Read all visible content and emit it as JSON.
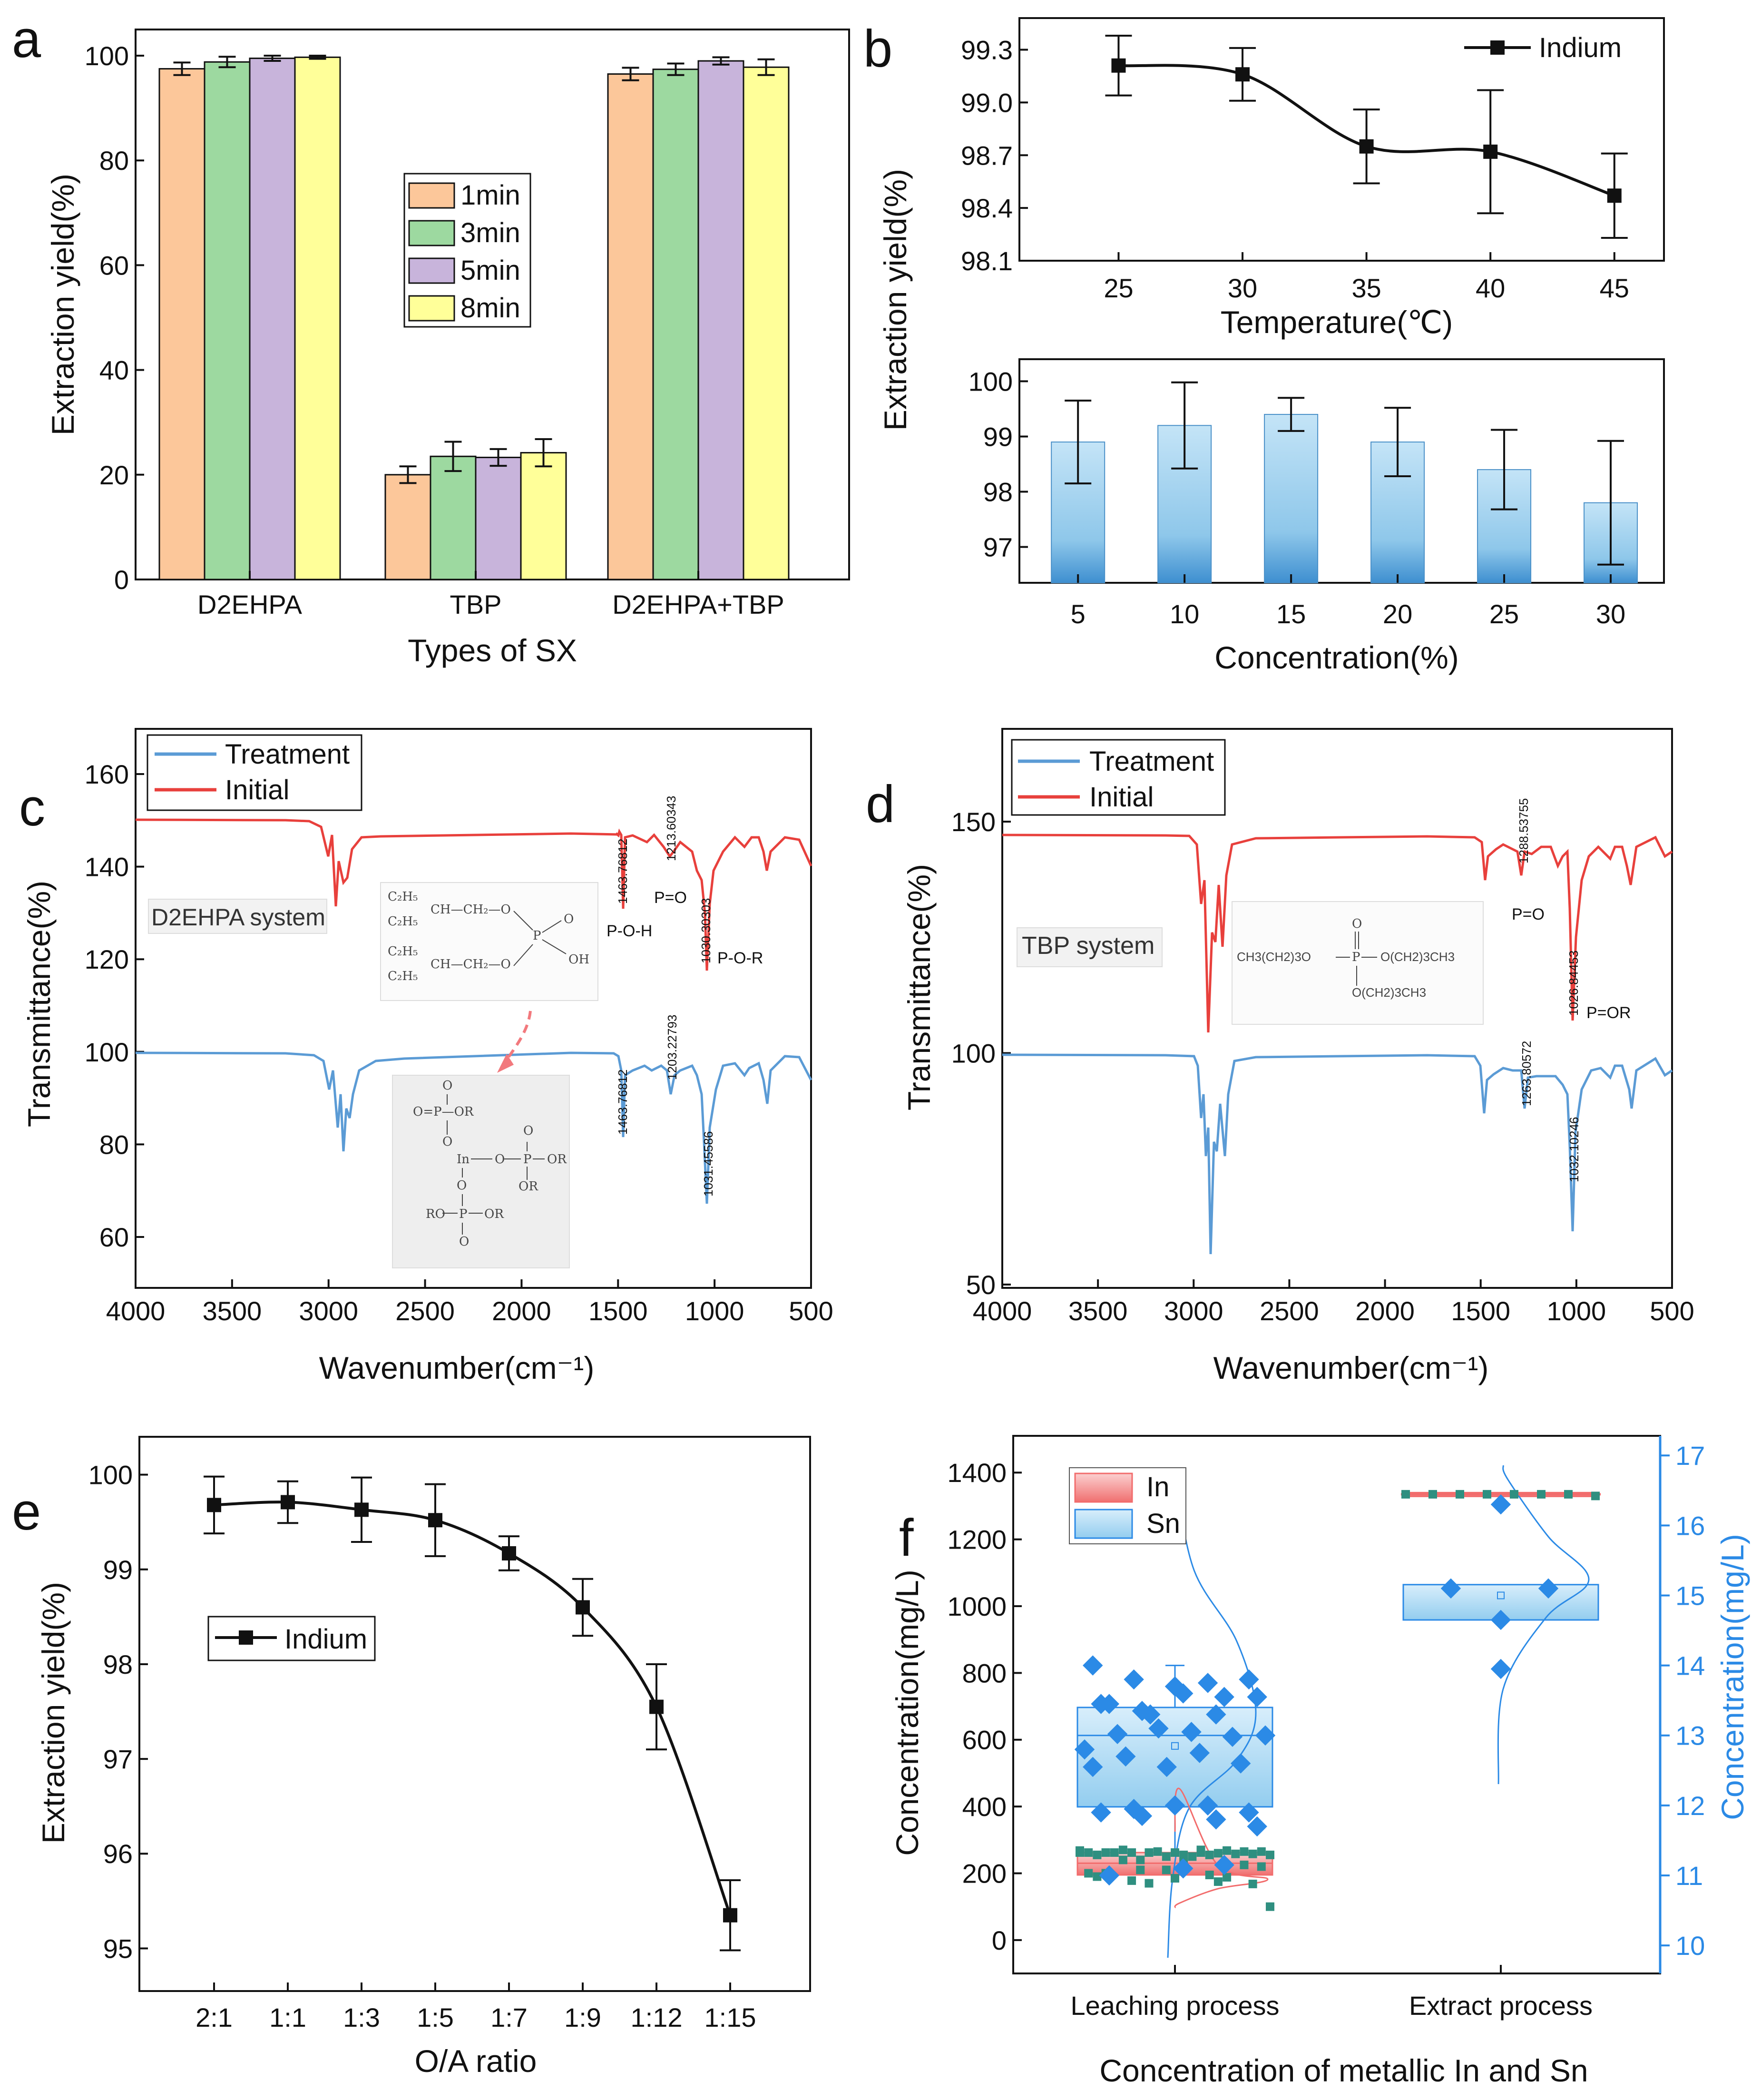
{
  "colors": {
    "peach": "#fcc79a",
    "green": "#9dd9a0",
    "purple": "#c8b4db",
    "yellow": "#ffff99",
    "blue_ftir": "#5b9bd5",
    "red_ftir": "#e8403c",
    "bar_blue": "#8ec7ea",
    "in_red": "#f26c6c",
    "sn_blue": "#2b8ae6",
    "teal": "#2f8f80"
  },
  "chart_data": [
    {
      "id": "a",
      "type": "bar",
      "panel_label": "a",
      "categories": [
        "D2EHPA",
        "TBP",
        "D2EHPA+TBP"
      ],
      "series": [
        {
          "name": "1min",
          "values": [
            97.5,
            20.0,
            96.5
          ],
          "errors": [
            1.2,
            1.6,
            1.2
          ]
        },
        {
          "name": "3min",
          "values": [
            98.8,
            23.5,
            97.4
          ],
          "errors": [
            1.0,
            2.8,
            1.1
          ]
        },
        {
          "name": "5min",
          "values": [
            99.5,
            23.3,
            99.0
          ],
          "errors": [
            0.5,
            1.6,
            0.7
          ]
        },
        {
          "name": "8min",
          "values": [
            99.7,
            24.2,
            97.8
          ],
          "errors": [
            0.3,
            2.6,
            1.5
          ]
        }
      ],
      "xlabel": "Types of SX",
      "ylabel": "Extraction yield(%)",
      "ylim": [
        0,
        105
      ],
      "yticks": [
        0,
        20,
        40,
        60,
        80,
        100
      ]
    },
    {
      "id": "b1",
      "type": "line",
      "panel_label": "b",
      "x": [
        25,
        30,
        35,
        40,
        45
      ],
      "values": [
        99.21,
        99.16,
        98.75,
        98.72,
        98.47
      ],
      "errors": [
        0.17,
        0.15,
        0.21,
        0.35,
        0.24
      ],
      "series_name": "Indium",
      "xlabel": "Temperature(℃)",
      "xlim": [
        21,
        47
      ],
      "ylim": [
        98.1,
        99.48
      ],
      "xticks": [
        25,
        30,
        35,
        40,
        45
      ],
      "yticks": [
        "98.1",
        "98.4",
        "98.7",
        "99.0",
        "99.3"
      ]
    },
    {
      "id": "b2",
      "type": "bar",
      "categories": [
        "5",
        "10",
        "15",
        "20",
        "25",
        "30"
      ],
      "values": [
        98.9,
        99.2,
        99.4,
        98.9,
        98.4,
        97.8
      ],
      "errors": [
        0.75,
        0.78,
        0.3,
        0.62,
        0.72,
        1.12
      ],
      "xlabel": "Concentration(%)",
      "ylim": [
        96.35,
        100.4
      ],
      "yticks": [
        97,
        98,
        99,
        100
      ],
      "shared_ylabel": "Extraction yield(%)"
    },
    {
      "id": "c",
      "type": "line",
      "panel_label": "c",
      "series": [
        {
          "name": "Treatment"
        },
        {
          "name": "Initial"
        }
      ],
      "xlabel": "Wavenumber(cm⁻¹)",
      "ylabel": "Transmittance(%)",
      "xlim": [
        4000,
        500
      ],
      "ylim": [
        50,
        170
      ],
      "xticks": [
        4000,
        3500,
        3000,
        2500,
        2000,
        1500,
        1000,
        500
      ],
      "yticks": [
        60,
        80,
        100,
        120,
        140,
        160
      ],
      "system_label": "D2EHPA system",
      "peak_labels_initial": [
        "1463.76812",
        "1213.60343",
        "1030.30303"
      ],
      "peak_labels_treatment": [
        "1463.76812",
        "1203.22793",
        "1031.45586"
      ],
      "bond_labels": [
        "P=O",
        "P-O-H",
        "P-O-R"
      ],
      "structure_top": {
        "r1": "C₂H₅",
        "r2": "C₂H₅",
        "r3": "C₂H₅",
        "r4": "C₂H₅",
        "chain": "CH—CH₂—O",
        "o": "O",
        "p": "P",
        "oh": "OH"
      },
      "structure_bottom": {
        "or": "OR",
        "o": "O",
        "p": "P",
        "in": "In",
        "ro": "RO",
        "o_or": "O=P—OR"
      }
    },
    {
      "id": "d",
      "type": "line",
      "panel_label": "d",
      "series": [
        {
          "name": "Treatment"
        },
        {
          "name": "Initial"
        }
      ],
      "xlabel": "Wavenumber(cm⁻¹)",
      "ylabel": "Transmittance(%)",
      "xlim": [
        4000,
        500
      ],
      "ylim": [
        50,
        170
      ],
      "xticks": [
        4000,
        3500,
        3000,
        2500,
        2000,
        1500,
        1000,
        500
      ],
      "yticks": [
        50,
        100,
        150
      ],
      "system_label": "TBP system",
      "peak_labels_initial": [
        "1288.53755",
        "1026.84453"
      ],
      "peak_labels_treatment": [
        "1263.80572",
        "1032.10246"
      ],
      "bond_labels": [
        "P=O",
        "P=OR"
      ],
      "structure": {
        "left": "CH3(CH2)3O",
        "right": "O(CH2)3CH3",
        "bottom": "O(CH2)3CH3",
        "p": "P",
        "o": "O"
      }
    },
    {
      "id": "e",
      "type": "line",
      "panel_label": "e",
      "categories": [
        "2:1",
        "1:1",
        "1:3",
        "1:5",
        "1:7",
        "1:9",
        "1:12",
        "1:15"
      ],
      "values": [
        99.68,
        99.71,
        99.63,
        99.52,
        99.17,
        98.6,
        97.55,
        95.35
      ],
      "errors": [
        0.3,
        0.22,
        0.34,
        0.38,
        0.18,
        0.3,
        0.45,
        0.37
      ],
      "series_name": "Indium",
      "xlabel": "O/A ratio",
      "ylabel": "Extraction yield(%)",
      "ylim": [
        94.55,
        100.4
      ],
      "yticks": [
        95,
        96,
        97,
        98,
        99,
        100
      ]
    },
    {
      "id": "f",
      "type": "box",
      "panel_label": "f",
      "categories": [
        "Leaching process",
        "Extract process"
      ],
      "series": [
        {
          "name": "In"
        },
        {
          "name": "Sn"
        }
      ],
      "xlabel": "Concentration of metallic In and Sn",
      "ylabel": "Concentration(mg/L)",
      "y2label": "Concentration(mg/L)",
      "ylim": [
        -100,
        1510
      ],
      "yticks": [
        0,
        200,
        400,
        600,
        800,
        1000,
        1200,
        1400
      ],
      "y2lim": [
        9.6,
        17.28
      ],
      "y2ticks": [
        10,
        11,
        12,
        13,
        14,
        15,
        16,
        17
      ],
      "in_leach_box": {
        "q1": 195,
        "median": 230,
        "q3": 262,
        "mean": 215
      },
      "in_leach_points": [
        268,
        262,
        270,
        265,
        250,
        262,
        255,
        262,
        258,
        262,
        255,
        260,
        240,
        265,
        255,
        262,
        268,
        262,
        255,
        250,
        262,
        258,
        265,
        262,
        270,
        240,
        225,
        210,
        200,
        195,
        178,
        168,
        185,
        190,
        175,
        210,
        220,
        232,
        200,
        188,
        170,
        100
      ],
      "sn_leach_box": {
        "q1": 11.98,
        "median": 13.0,
        "q3": 13.4,
        "mean": 12.85,
        "whisker_high": 14.0,
        "whisker_low": 11.08
      },
      "sn_leach_points": [
        14.0,
        13.75,
        13.8,
        13.8,
        13.7,
        13.45,
        13.3,
        13.35,
        13.55,
        13.6,
        13.45,
        13.55,
        13.3,
        13.0,
        13.05,
        13.02,
        12.98,
        13.1,
        12.8,
        12.75,
        12.7,
        12.6,
        12.55,
        12.55,
        12.0,
        11.95,
        11.9,
        12.0,
        11.9,
        11.8,
        11.85,
        11.7,
        11.1,
        11.0,
        11.15
      ],
      "in_extract_box": {
        "q1": 1330,
        "median": 1335,
        "q3": 1340,
        "mean": 1335
      },
      "in_extract_points": [
        1335,
        1335,
        1335,
        1335,
        1335,
        1335,
        1335,
        1330
      ],
      "sn_extract_box": {
        "q1": 14.65,
        "median": 15.1,
        "q3": 15.1,
        "mean": 15.0
      },
      "sn_extract_points": [
        16.3,
        15.1,
        15.1,
        14.65,
        13.95
      ]
    }
  ]
}
